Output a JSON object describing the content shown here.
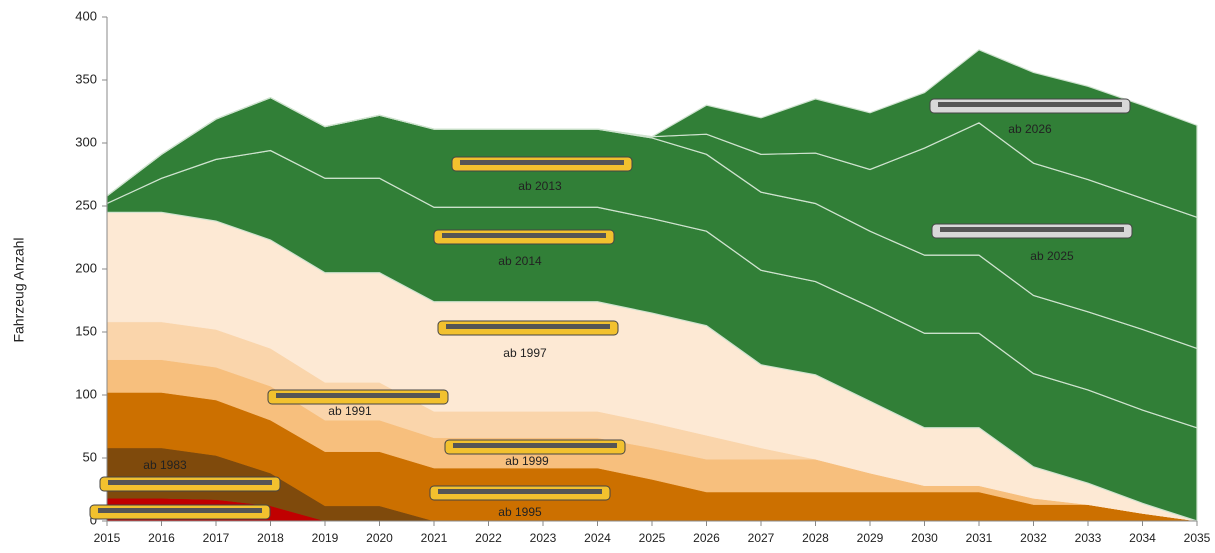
{
  "chart_data": {
    "type": "area",
    "stacked": true,
    "y_label": "Fahrzeug Anzahl",
    "x": [
      2015,
      2016,
      2017,
      2018,
      2019,
      2020,
      2021,
      2022,
      2023,
      2024,
      2025,
      2026,
      2027,
      2028,
      2029,
      2030,
      2031,
      2032,
      2033,
      2034,
      2035
    ],
    "xlim": [
      2015,
      2035
    ],
    "ylim": [
      0,
      400
    ],
    "yticks": [
      0,
      50,
      100,
      150,
      200,
      250,
      300,
      350,
      400
    ],
    "series": [
      {
        "color": "#c00000",
        "values": [
          18,
          18,
          17,
          12,
          0,
          0,
          0,
          0,
          0,
          0,
          0,
          0,
          0,
          0,
          0,
          0,
          0,
          0,
          0,
          0,
          0
        ]
      },
      {
        "name": "ab 1983",
        "color": "#7f4a0c",
        "values": [
          40,
          40,
          35,
          26,
          12,
          12,
          0,
          0,
          0,
          0,
          0,
          0,
          0,
          0,
          0,
          0,
          0,
          0,
          0,
          0,
          0
        ]
      },
      {
        "name": "ab 1995",
        "color": "#cc7000",
        "values": [
          44,
          44,
          44,
          42,
          43,
          43,
          42,
          42,
          42,
          42,
          33,
          23,
          23,
          23,
          23,
          23,
          23,
          13,
          13,
          6,
          0
        ]
      },
      {
        "name": "ab 1999",
        "color": "#f7bf7d",
        "values": [
          26,
          26,
          26,
          27,
          25,
          25,
          24,
          24,
          24,
          24,
          25,
          26,
          26,
          26,
          15,
          5,
          5,
          5,
          0,
          0,
          0
        ]
      },
      {
        "name": "ab 1991",
        "color": "#fad5ab",
        "values": [
          30,
          30,
          30,
          30,
          30,
          30,
          21,
          21,
          21,
          21,
          20,
          19,
          9,
          0,
          0,
          0,
          0,
          0,
          0,
          0,
          0
        ]
      },
      {
        "name": "ab 1997",
        "color": "#fde9d4",
        "values": [
          87,
          87,
          86,
          86,
          87,
          87,
          87,
          87,
          87,
          87,
          87,
          87,
          66,
          67,
          57,
          46,
          46,
          25,
          17,
          8,
          0
        ]
      },
      {
        "name": "ab 2014",
        "color": "#317f37",
        "values": [
          7,
          27,
          49,
          71,
          75,
          75,
          75,
          75,
          75,
          75,
          75,
          75,
          75,
          74,
          75,
          75,
          75,
          74,
          74,
          74,
          74
        ]
      },
      {
        "name": "ab 2013",
        "color": "#317f37",
        "values": [
          6,
          19,
          32,
          42,
          41,
          50,
          62,
          62,
          62,
          62,
          64,
          61,
          62,
          62,
          60,
          62,
          62,
          62,
          62,
          64,
          63
        ]
      },
      {
        "name": "ab 2025",
        "color": "#317f37",
        "values": [
          0,
          0,
          0,
          0,
          0,
          0,
          0,
          0,
          0,
          0,
          1,
          16,
          30,
          40,
          49,
          85,
          105,
          105,
          105,
          104,
          104
        ]
      },
      {
        "name": "ab 2026",
        "color": "#317f37",
        "values": [
          0,
          0,
          0,
          0,
          0,
          0,
          0,
          0,
          0,
          0,
          0,
          23,
          29,
          43,
          45,
          44,
          58,
          72,
          74,
          74,
          73
        ]
      }
    ]
  }
}
